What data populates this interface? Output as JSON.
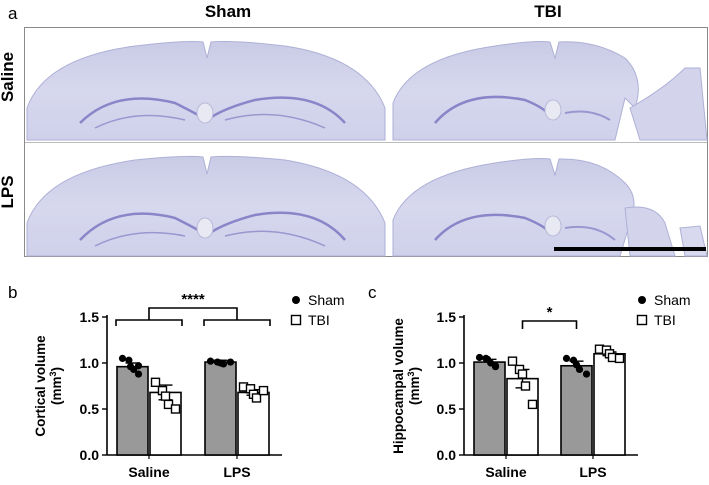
{
  "panel_a": {
    "letter": "a",
    "col_headers": [
      "Sham",
      "TBI"
    ],
    "row_headers": [
      "Saline",
      "LPS"
    ]
  },
  "chart_data": [
    {
      "type": "bar",
      "panel_letter": "b",
      "ylabel_main": "Cortical volume",
      "ylabel_unit": "(mm",
      "ylabel_sup": "3",
      "ylabel_close": ")",
      "categories": [
        "Saline",
        "LPS"
      ],
      "ylim": [
        0,
        1.5
      ],
      "yticks": [
        "0.0",
        "0.5",
        "1.0",
        "1.5"
      ],
      "legend": [
        "Sham",
        "TBI"
      ],
      "legend_position": "top-right",
      "significance": "****",
      "series": [
        {
          "name": "Sham",
          "values": [
            0.96,
            1.01
          ],
          "errors": [
            0.04,
            0.02
          ],
          "color": "#999999",
          "points": [
            [
              1.05,
              1.03,
              0.96,
              0.93,
              0.88,
              0.97
            ],
            [
              1.02,
              1.01,
              1.0,
              0.99,
              1.01
            ]
          ]
        },
        {
          "name": "TBI",
          "values": [
            0.68,
            0.68
          ],
          "errors": [
            0.08,
            0.03
          ],
          "color": "#ffffff",
          "points": [
            [
              0.79,
              0.7,
              0.64,
              0.55,
              0.5
            ],
            [
              0.74,
              0.72,
              0.66,
              0.62,
              0.7
            ]
          ]
        }
      ]
    },
    {
      "type": "bar",
      "panel_letter": "c",
      "ylabel_main": "Hippocampal volume",
      "ylabel_unit": "(mm",
      "ylabel_sup": "3",
      "ylabel_close": ")",
      "categories": [
        "Saline",
        "LPS"
      ],
      "ylim": [
        0,
        1.5
      ],
      "yticks": [
        "0.0",
        "0.5",
        "1.0",
        "1.5"
      ],
      "legend": [
        "Sham",
        "TBI"
      ],
      "legend_position": "top-right",
      "significance": "*",
      "series": [
        {
          "name": "Sham",
          "values": [
            1.01,
            0.97
          ],
          "errors": [
            0.03,
            0.05
          ],
          "color": "#999999",
          "points": [
            [
              1.06,
              1.05,
              1.04,
              1.0,
              0.97,
              0.96
            ],
            [
              1.05,
              1.03,
              0.98,
              0.93,
              0.88
            ]
          ]
        },
        {
          "name": "TBI",
          "values": [
            0.83,
            1.1
          ],
          "errors": [
            0.1,
            0.02
          ],
          "color": "#ffffff",
          "points": [
            [
              1.02,
              0.93,
              0.88,
              0.75,
              0.55
            ],
            [
              1.15,
              1.14,
              1.1,
              1.06,
              1.05
            ]
          ]
        }
      ]
    }
  ]
}
